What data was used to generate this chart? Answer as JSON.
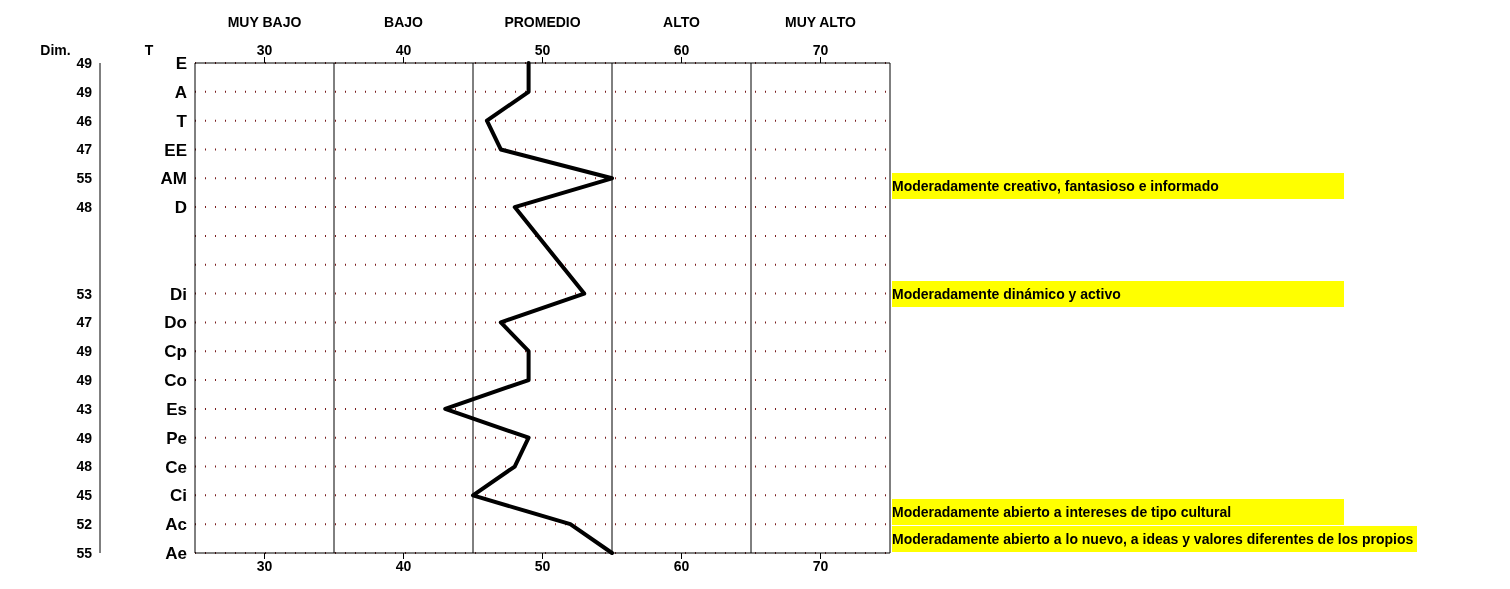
{
  "chart_data": {
    "type": "line",
    "orientation": "horizontal",
    "categories": [
      "E",
      "A",
      "T",
      "EE",
      "AM",
      "D",
      null,
      null,
      "Di",
      "Do",
      "Cp",
      "Co",
      "Es",
      "Pe",
      "Ce",
      "Ci",
      "Ac",
      "Ae"
    ],
    "values": [
      49,
      49,
      46,
      47,
      55,
      48,
      null,
      null,
      53,
      47,
      49,
      49,
      43,
      49,
      48,
      45,
      52,
      55
    ],
    "color": "#000000",
    "data_labels": true,
    "marker": "none",
    "line_style": "solid",
    "grid": "y",
    "xlim": [
      25,
      75
    ],
    "xticks": [
      30,
      40,
      50,
      60,
      70
    ],
    "x2lim": [
      25,
      75
    ],
    "x2ticks": [
      30,
      40,
      50,
      60,
      70
    ],
    "ref_lines": [
      {
        "axis": "x",
        "value": 35
      },
      {
        "axis": "x",
        "value": 45
      },
      {
        "axis": "x",
        "value": 55
      },
      {
        "axis": "x",
        "value": 65
      }
    ],
    "annotations": [
      "Dim.",
      "T",
      "MUY BAJO",
      "BAJO",
      "PROMEDIO",
      "ALTO",
      "MUY ALTO",
      "Moderadamente creativo, fantasioso e informado",
      "Moderadamente dinámico y activo",
      "Moderadamente abierto a intereses de tipo cultural",
      "Moderadamente abierto a lo nuevo, a ideas y valores diferentes de los propios"
    ]
  }
}
